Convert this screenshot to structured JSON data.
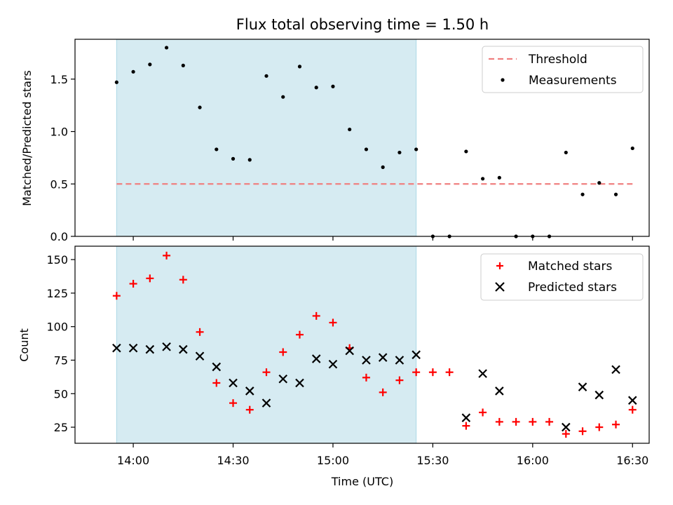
{
  "chart_data": [
    {
      "type": "scatter",
      "title": "Flux total observing time = 1.50 h",
      "xlabel": "",
      "ylabel": "Matched/Predicted stars",
      "ylim": [
        0,
        1.88
      ],
      "yticks": [
        0.0,
        0.5,
        1.0,
        1.5
      ],
      "ytick_labels": [
        "0.0",
        "0.5",
        "1.0",
        "1.5"
      ],
      "highlight_span": [
        "13:55",
        "15:25"
      ],
      "threshold": {
        "name": "Threshold",
        "value": 0.5,
        "x_start": "13:55",
        "x_end": "16:30",
        "color": "#f08080"
      },
      "legend": {
        "position": "top-right",
        "entries": [
          "Threshold",
          "Measurements"
        ]
      },
      "series": [
        {
          "name": "Measurements",
          "color": "#000000",
          "x": [
            "13:55",
            "14:00",
            "14:05",
            "14:10",
            "14:15",
            "14:20",
            "14:25",
            "14:30",
            "14:35",
            "14:40",
            "14:45",
            "14:50",
            "14:55",
            "15:00",
            "15:05",
            "15:10",
            "15:15",
            "15:20",
            "15:25",
            "15:30",
            "15:35",
            "15:40",
            "15:45",
            "15:50",
            "15:55",
            "16:00",
            "16:05",
            "16:10",
            "16:15",
            "16:20",
            "16:25",
            "16:30"
          ],
          "y": [
            1.47,
            1.57,
            1.64,
            1.8,
            1.63,
            1.23,
            0.83,
            0.74,
            0.73,
            1.53,
            1.33,
            1.62,
            1.42,
            1.43,
            1.02,
            0.83,
            0.66,
            0.8,
            0.83,
            0.0,
            0.0,
            0.81,
            0.55,
            0.56,
            0.0,
            0.0,
            0.0,
            0.8,
            0.4,
            0.51,
            0.4,
            0.84
          ]
        }
      ]
    },
    {
      "type": "scatter",
      "title": "",
      "xlabel": "Time (UTC)",
      "ylabel": "Count",
      "ylim": [
        13,
        160
      ],
      "yticks": [
        25,
        50,
        75,
        100,
        125,
        150
      ],
      "ytick_labels": [
        "25",
        "50",
        "75",
        "100",
        "125",
        "150"
      ],
      "xticks": [
        "14:00",
        "14:30",
        "15:00",
        "15:30",
        "16:00",
        "16:30"
      ],
      "highlight_span": [
        "13:55",
        "15:25"
      ],
      "legend": {
        "position": "top-right",
        "entries": [
          "Matched stars",
          "Predicted stars"
        ]
      },
      "series": [
        {
          "name": "Matched stars",
          "marker": "plus",
          "color": "#ff0000",
          "x": [
            "13:55",
            "14:00",
            "14:05",
            "14:10",
            "14:15",
            "14:20",
            "14:25",
            "14:30",
            "14:35",
            "14:40",
            "14:45",
            "14:50",
            "14:55",
            "15:00",
            "15:05",
            "15:10",
            "15:15",
            "15:20",
            "15:25",
            "15:30",
            "15:35",
            "15:40",
            "15:45",
            "15:50",
            "15:55",
            "16:00",
            "16:05",
            "16:10",
            "16:15",
            "16:20",
            "16:25",
            "16:30"
          ],
          "y": [
            123,
            132,
            136,
            153,
            135,
            96,
            58,
            43,
            38,
            66,
            81,
            94,
            108,
            103,
            84,
            62,
            51,
            60,
            66,
            66,
            66,
            26,
            36,
            29,
            29,
            29,
            29,
            20,
            22,
            25,
            27,
            38
          ]
        },
        {
          "name": "Predicted stars",
          "marker": "x",
          "color": "#000000",
          "x": [
            "13:55",
            "14:00",
            "14:05",
            "14:10",
            "14:15",
            "14:20",
            "14:25",
            "14:30",
            "14:35",
            "14:40",
            "14:45",
            "14:50",
            "14:55",
            "15:00",
            "15:05",
            "15:10",
            "15:15",
            "15:20",
            "15:25",
            "15:40",
            "15:45",
            "15:50",
            "16:10",
            "16:15",
            "16:20",
            "16:25",
            "16:30"
          ],
          "y": [
            84,
            84,
            83,
            85,
            83,
            78,
            70,
            58,
            52,
            43,
            61,
            58,
            76,
            72,
            82,
            75,
            77,
            75,
            79,
            32,
            65,
            52,
            25,
            55,
            49,
            68,
            45
          ]
        }
      ]
    }
  ]
}
